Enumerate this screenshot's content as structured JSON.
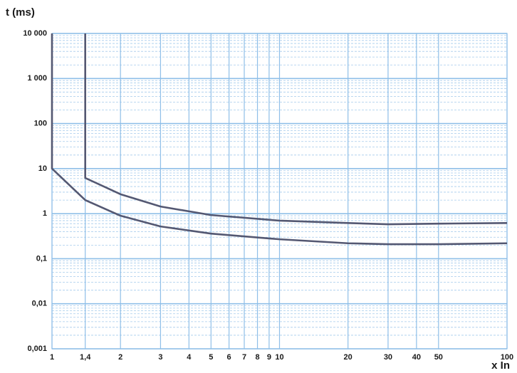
{
  "chart_data": {
    "type": "line",
    "y_label": "t (ms)",
    "x_label": "x In",
    "xlog": true,
    "ylog": true,
    "grid": true,
    "grid_color": "#8fbfe8",
    "xlim": [
      1,
      100
    ],
    "ylim": [
      0.001,
      10000
    ],
    "xticks": [
      1,
      {
        "value": 1.4,
        "label": "1,4"
      },
      2,
      3,
      4,
      5,
      6,
      7,
      8,
      9,
      10,
      20,
      30,
      40,
      50,
      100
    ],
    "yticks": [
      {
        "value": 0.001,
        "label": "0,001"
      },
      {
        "value": 0.01,
        "label": "0,01"
      },
      {
        "value": 0.1,
        "label": "0,1"
      },
      1,
      10,
      100,
      {
        "value": 1000,
        "label": "1 000"
      },
      {
        "value": 10000,
        "label": "10 000"
      }
    ],
    "series": [
      {
        "color": "#545872",
        "x": [
          1,
          1,
          1.4,
          2,
          3,
          5,
          10,
          20,
          30,
          50,
          100
        ],
        "values": [
          10000,
          10,
          2,
          0.9,
          0.52,
          0.36,
          0.27,
          0.22,
          0.21,
          0.21,
          0.22
        ]
      },
      {
        "color": "#545872",
        "x": [
          1.4,
          1.4,
          2,
          3,
          5,
          10,
          20,
          30,
          50,
          100
        ],
        "values": [
          10000,
          6.2,
          2.7,
          1.44,
          0.93,
          0.7,
          0.62,
          0.58,
          0.6,
          0.62
        ]
      }
    ]
  }
}
